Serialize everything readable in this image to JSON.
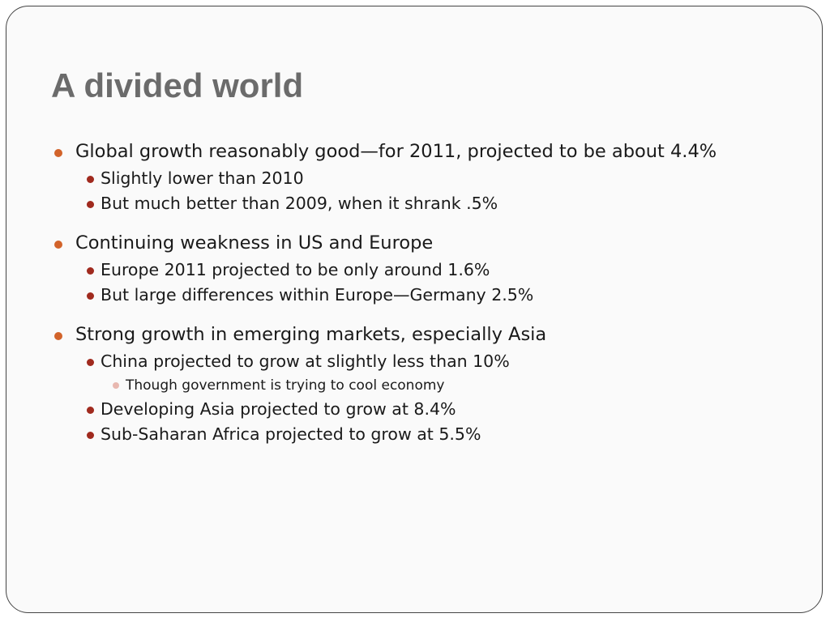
{
  "slide": {
    "title": "A divided world",
    "bullets": [
      {
        "text": "Global growth reasonably good—for 2011, projected to be about 4.4%",
        "sub": [
          {
            "text": "Slightly lower than 2010"
          },
          {
            "text": "But much better than 2009, when it shrank .5%"
          }
        ]
      },
      {
        "text": "Continuing weakness in US and Europe",
        "sub": [
          {
            "text": "Europe 2011 projected to be only around 1.6%"
          },
          {
            "text": "But large differences within Europe—Germany 2.5%"
          }
        ]
      },
      {
        "text": "Strong growth in emerging markets, especially Asia",
        "sub": [
          {
            "text": "China projected to grow at slightly less than 10%",
            "sub": [
              {
                "text": "Though government is trying to cool economy"
              }
            ]
          },
          {
            "text": "Developing Asia projected to grow at 8.4%"
          },
          {
            "text": "Sub-Saharan Africa projected to grow at 5.5%"
          }
        ]
      }
    ]
  },
  "colors": {
    "title": "#6b6b6b",
    "bullet_level1": "#d2632a",
    "bullet_level2": "#a02a1e",
    "bullet_level3": "#e8b8b0",
    "slide_border": "#444444"
  }
}
